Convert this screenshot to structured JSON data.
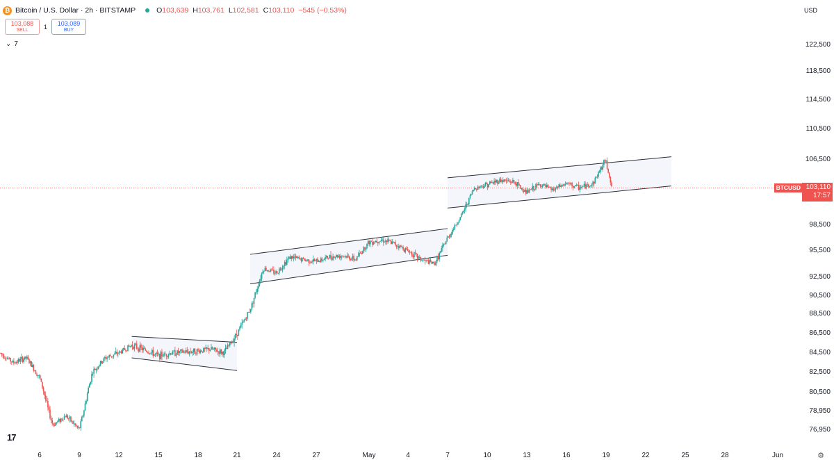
{
  "header": {
    "title": "Bitcoin / U.S. Dollar · 2h · BITSTAMP",
    "coin_icon": "bitcoin-icon",
    "status_color": "#26a69a",
    "o_label": "O",
    "o": "103,639",
    "h_label": "H",
    "h": "103,761",
    "l_label": "L",
    "l": "102,581",
    "c_label": "C",
    "c": "103,110",
    "change": "−545 (−0.53%)"
  },
  "trade": {
    "sell_price": "103,088",
    "sell_label": "SELL",
    "spread": "1",
    "buy_price": "103,089",
    "buy_label": "BUY"
  },
  "indicators": {
    "toggle_icon": "chevron-down-icon",
    "count": "7"
  },
  "currency": "USD",
  "price_tag": {
    "symbol": "BTCUSD",
    "price": "103,110",
    "countdown": "17:57",
    "color": "#ef5350"
  },
  "chart_data": {
    "type": "candlestick",
    "title": "",
    "y_ticks": [
      "122,500",
      "118,500",
      "114,500",
      "110,500",
      "106,500",
      "98,500",
      "95,500",
      "92,500",
      "90,500",
      "88,500",
      "86,500",
      "84,500",
      "82,500",
      "80,500",
      "78,950",
      "76,950"
    ],
    "x_ticks": [
      "6",
      "9",
      "12",
      "15",
      "18",
      "21",
      "24",
      "27",
      "May",
      "4",
      "7",
      "10",
      "13",
      "16",
      "19",
      "22",
      "25",
      "28",
      "Jun"
    ],
    "current_price": 103110,
    "up_color": "#26a69a",
    "down_color": "#ef5350",
    "price_path": [
      [
        "Apr 3",
        84500
      ],
      [
        "Apr 4",
        83500
      ],
      [
        "Apr 5",
        84000
      ],
      [
        "Apr 6",
        82000
      ],
      [
        "Apr 7",
        77500
      ],
      [
        "Apr 8",
        78500
      ],
      [
        "Apr 9",
        77000
      ],
      [
        "Apr 10",
        82500
      ],
      [
        "Apr 11",
        84000
      ],
      [
        "Apr 12",
        84500
      ],
      [
        "Apr 13",
        85300
      ],
      [
        "Apr 14",
        84800
      ],
      [
        "Apr 15",
        84200
      ],
      [
        "Apr 16",
        84500
      ],
      [
        "Apr 17",
        84600
      ],
      [
        "Apr 18",
        84700
      ],
      [
        "Apr 19",
        84900
      ],
      [
        "Apr 20",
        84500
      ],
      [
        "Apr 21",
        86500
      ],
      [
        "Apr 22",
        89000
      ],
      [
        "Apr 23",
        93500
      ],
      [
        "Apr 24",
        93000
      ],
      [
        "Apr 25",
        94800
      ],
      [
        "Apr 26",
        94500
      ],
      [
        "Apr 27",
        94300
      ],
      [
        "Apr 28",
        94800
      ],
      [
        "Apr 29",
        95000
      ],
      [
        "Apr 30",
        94500
      ],
      [
        "May 1",
        96500
      ],
      [
        "May 2",
        96800
      ],
      [
        "May 3",
        96300
      ],
      [
        "May 4",
        95500
      ],
      [
        "May 5",
        94500
      ],
      [
        "May 6",
        94000
      ],
      [
        "May 7",
        97000
      ],
      [
        "May 8",
        99500
      ],
      [
        "May 9",
        103000
      ],
      [
        "May 10",
        103500
      ],
      [
        "May 11",
        104000
      ],
      [
        "May 12",
        103800
      ],
      [
        "May 13",
        102500
      ],
      [
        "May 14",
        103500
      ],
      [
        "May 15",
        102800
      ],
      [
        "May 16",
        103600
      ],
      [
        "May 17",
        103100
      ],
      [
        "May 18",
        103500
      ],
      [
        "May 19",
        106500
      ],
      [
        "May 19.5",
        103110
      ]
    ],
    "channels": [
      {
        "name": "",
        "start": [
          "Apr 13",
          86200
        ],
        "end": [
          "Apr 21",
          85600
        ],
        "lower_start": [
          "Apr 13",
          84000
        ],
        "lower_end": [
          "Apr 21",
          82700
        ]
      },
      {
        "name": "",
        "start": [
          "Apr 22",
          95100
        ],
        "end": [
          "May 7",
          98100
        ],
        "lower_start": [
          "Apr 22",
          91800
        ],
        "lower_end": [
          "May 7",
          95000
        ]
      },
      {
        "name": "",
        "start": [
          "May 7",
          104300
        ],
        "end": [
          "May 24",
          106900
        ],
        "lower_start": [
          "May 7",
          100600
        ],
        "lower_end": [
          "May 24",
          103300
        ]
      }
    ],
    "grid": false,
    "legend": "none"
  }
}
